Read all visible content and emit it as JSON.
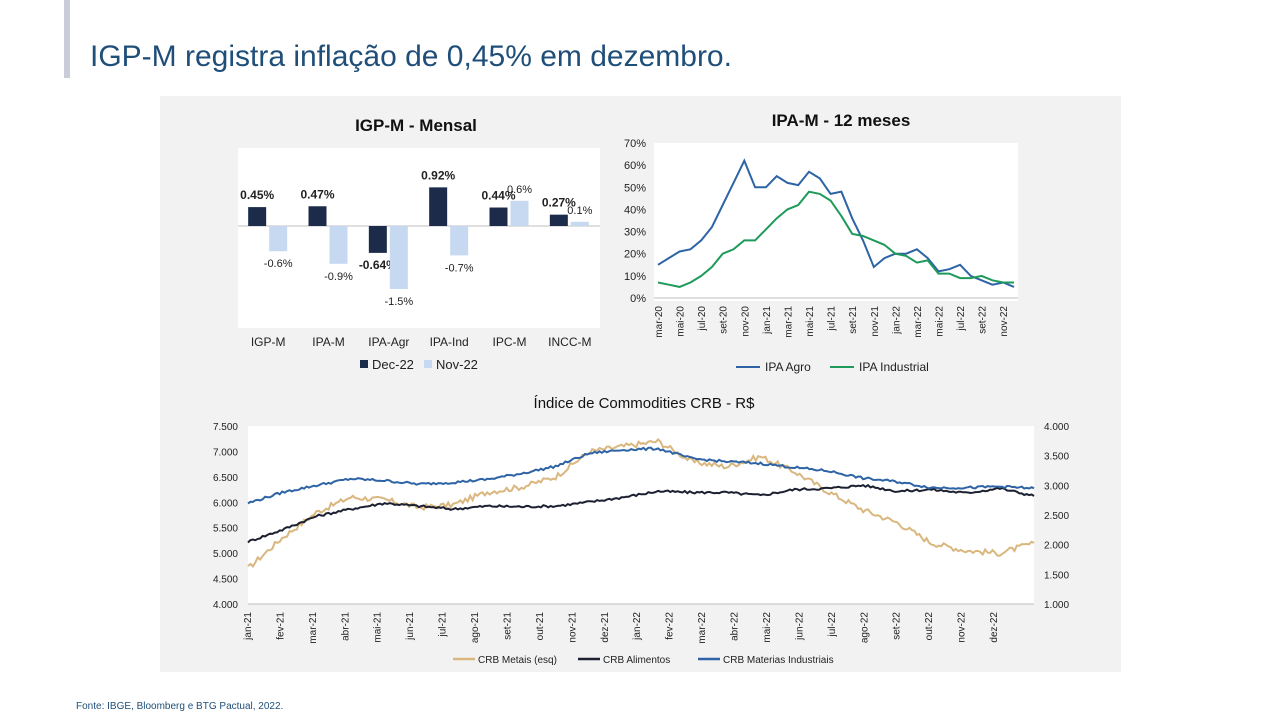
{
  "slide": {
    "title": "IGP-M registra inflação de 0,45% em dezembro.",
    "source": "Fonte: IBGE,  Bloomberg e BTG Pactual, 2022."
  },
  "colors": {
    "title": "#1f4e79",
    "dec22": "#1c2b4a",
    "nov22": "#c6d9f0",
    "ipa_agro": "#2e64a5",
    "ipa_industrial": "#1e9a5a",
    "crb_metais": "#d9b77e",
    "crb_alimentos": "#1c2030",
    "crb_materias": "#2e64a5"
  },
  "chart_data": [
    {
      "type": "bar",
      "title": "IGP-M - Mensal",
      "categories": [
        "IGP-M",
        "IPA-M",
        "IPA-Agr",
        "IPA-Ind",
        "IPC-M",
        "INCC-M"
      ],
      "series": [
        {
          "name": "Dec-22",
          "values": [
            0.45,
            0.47,
            -0.64,
            0.92,
            0.44,
            0.27
          ],
          "labels": [
            "0.45%",
            "0.47%",
            "-0.64%",
            "0.92%",
            "0.44%",
            "0.27%"
          ]
        },
        {
          "name": "Nov-22",
          "values": [
            -0.6,
            -0.9,
            -1.5,
            -0.7,
            0.6,
            0.1
          ],
          "labels": [
            "-0.6%",
            "-0.9%",
            "-1.5%",
            "-0.7%",
            "0.6%",
            "0.1%"
          ]
        }
      ],
      "legend": "bottom"
    },
    {
      "type": "line",
      "title": "IPA-M - 12 meses",
      "ylim": [
        0,
        70
      ],
      "yticks": [
        "0%",
        "10%",
        "20%",
        "30%",
        "40%",
        "50%",
        "60%",
        "70%"
      ],
      "x": [
        "mar-20",
        "abr-20",
        "mai-20",
        "jun-20",
        "jul-20",
        "ago-20",
        "set-20",
        "out-20",
        "nov-20",
        "dez-20",
        "jan-21",
        "fev-21",
        "mar-21",
        "abr-21",
        "mai-21",
        "jun-21",
        "jul-21",
        "ago-21",
        "set-21",
        "out-21",
        "nov-21",
        "dez-21",
        "jan-22",
        "fev-22",
        "mar-22",
        "abr-22",
        "mai-22",
        "jun-22",
        "jul-22",
        "ago-22",
        "set-22",
        "out-22",
        "nov-22",
        "dez-22"
      ],
      "xticks": [
        "mar-20",
        "mai-20",
        "jul-20",
        "set-20",
        "nov-20",
        "jan-21",
        "mar-21",
        "mai-21",
        "jul-21",
        "set-21",
        "nov-21",
        "jan-22",
        "mar-22",
        "mai-22",
        "jul-22",
        "set-22",
        "nov-22"
      ],
      "series": [
        {
          "name": "IPA Agro",
          "values": [
            15,
            18,
            21,
            22,
            26,
            32,
            42,
            52,
            62,
            50,
            50,
            55,
            52,
            51,
            57,
            54,
            47,
            48,
            36,
            26,
            14,
            18,
            20,
            20,
            22,
            18,
            12,
            13,
            15,
            10,
            8,
            6,
            7,
            5
          ]
        },
        {
          "name": "IPA Industrial",
          "values": [
            7,
            6,
            5,
            7,
            10,
            14,
            20,
            22,
            26,
            26,
            31,
            36,
            40,
            42,
            48,
            47,
            44,
            37,
            29,
            28,
            26,
            24,
            20,
            19,
            16,
            17,
            11,
            11,
            9,
            9,
            10,
            8,
            7,
            7
          ]
        }
      ],
      "legend": "bottom"
    },
    {
      "type": "line",
      "title": "Índice de Commodities CRB - R$",
      "x": [
        "jan-21",
        "fev-21",
        "mar-21",
        "abr-21",
        "mai-21",
        "jun-21",
        "jul-21",
        "ago-21",
        "set-21",
        "out-21",
        "nov-21",
        "dez-21",
        "jan-22",
        "fev-22",
        "mar-22",
        "abr-22",
        "mai-22",
        "jun-22",
        "jul-22",
        "ago-22",
        "set-22",
        "out-22",
        "nov-22",
        "dez-22"
      ],
      "y_left": {
        "ylim": [
          4000,
          7500
        ],
        "ticks": [
          "4.000",
          "4.500",
          "5.000",
          "5.500",
          "6.000",
          "6.500",
          "7.000",
          "7.500"
        ]
      },
      "y_right": {
        "ylim": [
          1000,
          4000
        ],
        "ticks": [
          "1.000",
          "1.500",
          "2.000",
          "2.500",
          "3.000",
          "3.500",
          "4.000"
        ]
      },
      "series": [
        {
          "name": "CRB Metais (esq)",
          "axis": "left",
          "values": [
            4700,
            5300,
            5800,
            6100,
            6050,
            5900,
            5950,
            6200,
            6300,
            6500,
            7000,
            7100,
            7200,
            6800,
            6700,
            6900,
            6600,
            6200,
            5850,
            5600,
            5200,
            5050,
            5000,
            5200
          ]
        },
        {
          "name": "CRB Alimentos",
          "axis": "right",
          "values": [
            2050,
            2250,
            2480,
            2600,
            2700,
            2650,
            2600,
            2650,
            2640,
            2650,
            2720,
            2800,
            2900,
            2880,
            2880,
            2830,
            2930,
            2950,
            3000,
            2900,
            2930,
            2870,
            2950,
            2820
          ]
        },
        {
          "name": "CRB Materias Industriais",
          "axis": "right",
          "values": [
            2700,
            2880,
            3000,
            3110,
            3080,
            3020,
            3050,
            3100,
            3200,
            3320,
            3540,
            3600,
            3620,
            3450,
            3400,
            3370,
            3300,
            3240,
            3120,
            3060,
            2960,
            2960,
            2980,
            2950
          ]
        }
      ],
      "legend": "bottom"
    }
  ]
}
